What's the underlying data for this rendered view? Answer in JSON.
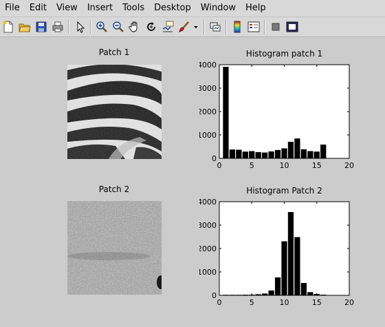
{
  "menubar": {
    "items": [
      "File",
      "Edit",
      "View",
      "Insert",
      "Tools",
      "Desktop",
      "Window",
      "Help"
    ]
  },
  "toolbar": {
    "buttons": [
      {
        "name": "new-figure-icon"
      },
      {
        "name": "open-file-icon"
      },
      {
        "name": "save-figure-icon"
      },
      {
        "name": "print-figure-icon"
      },
      {
        "name": "edit-plot-arrow-icon"
      },
      {
        "name": "zoom-in-icon"
      },
      {
        "name": "zoom-out-icon"
      },
      {
        "name": "pan-hand-icon"
      },
      {
        "name": "rotate-3d-icon"
      },
      {
        "name": "data-cursor-icon"
      },
      {
        "name": "brush-icon"
      },
      {
        "name": "brush-dropdown-icon"
      },
      {
        "name": "link-plot-icon"
      },
      {
        "name": "insert-colorbar-icon"
      },
      {
        "name": "insert-legend-icon"
      },
      {
        "name": "hide-plot-tools-icon"
      },
      {
        "name": "show-plot-tools-icon"
      }
    ]
  },
  "figure": {
    "patch1_title": "Patch 1",
    "patch2_title": "Patch 2"
  },
  "chart_data": [
    {
      "type": "bar",
      "title": "Histogram patch 1",
      "xlabel": "",
      "ylabel": "",
      "xlim": [
        0,
        20
      ],
      "ylim": [
        0,
        4000
      ],
      "xticks": [
        0,
        5,
        10,
        15,
        20
      ],
      "yticks": [
        0,
        1000,
        2000,
        3000,
        4000
      ],
      "x": [
        1,
        2,
        3,
        4,
        5,
        6,
        7,
        8,
        9,
        10,
        11,
        12,
        13,
        14,
        15,
        16
      ],
      "values": [
        3900,
        370,
        360,
        280,
        300,
        260,
        240,
        290,
        350,
        420,
        700,
        840,
        380,
        300,
        280,
        580
      ],
      "bar_color": "#000000"
    },
    {
      "type": "bar",
      "title": "Histogram Patch 2",
      "xlabel": "",
      "ylabel": "",
      "xlim": [
        0,
        20
      ],
      "ylim": [
        0,
        4000
      ],
      "xticks": [
        0,
        5,
        10,
        15,
        20
      ],
      "yticks": [
        0,
        1000,
        2000,
        3000,
        4000
      ],
      "x": [
        1,
        2,
        3,
        4,
        5,
        6,
        7,
        8,
        9,
        10,
        11,
        12,
        13,
        14,
        15,
        16
      ],
      "values": [
        15,
        15,
        15,
        20,
        20,
        40,
        70,
        200,
        760,
        2300,
        3550,
        2480,
        520,
        130,
        50,
        20
      ],
      "bar_color": "#000000"
    }
  ]
}
